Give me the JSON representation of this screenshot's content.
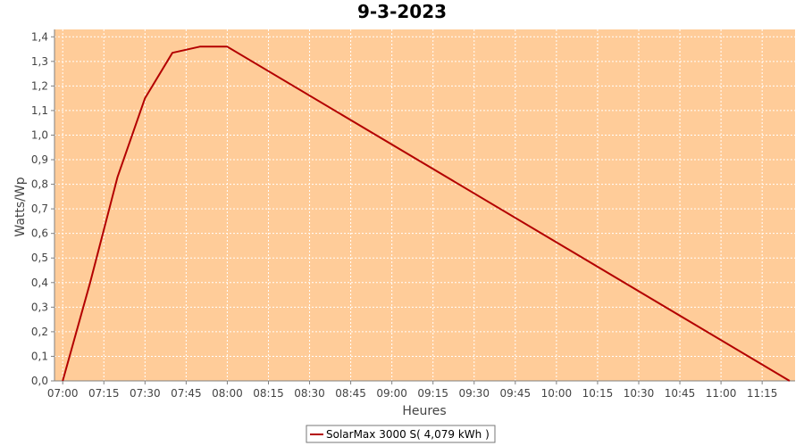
{
  "chart_data": {
    "type": "line",
    "title": "9-3-2023",
    "xlabel": "Heures",
    "ylabel": "Watts/Wp",
    "x_ticks": [
      "07:00",
      "07:15",
      "07:30",
      "07:45",
      "08:00",
      "08:15",
      "08:30",
      "08:45",
      "09:00",
      "09:15",
      "09:30",
      "09:45",
      "10:00",
      "10:15",
      "10:30",
      "10:45",
      "11:00",
      "11:15"
    ],
    "y_ticks": [
      "0,0",
      "0,1",
      "0,2",
      "0,3",
      "0,4",
      "0,5",
      "0,6",
      "0,7",
      "0,8",
      "0,9",
      "1,0",
      "1,1",
      "1,2",
      "1,3",
      "1,4"
    ],
    "xlim": [
      "06:57",
      "11:27"
    ],
    "ylim": [
      0,
      1.43
    ],
    "grid": true,
    "legend_position": "bottom-center",
    "series": [
      {
        "name": "SolarMax 3000 S( 4,079 kWh )",
        "color": "#b30000",
        "x": [
          "07:00",
          "07:10",
          "07:20",
          "07:30",
          "07:40",
          "07:50",
          "08:00",
          "11:25"
        ],
        "y": [
          0.0,
          0.4,
          0.83,
          1.15,
          1.335,
          1.36,
          1.36,
          0.0
        ]
      }
    ],
    "colors": {
      "plot_background": "#ffcc99",
      "gridline": "#ffffff",
      "axis": "#808080"
    }
  }
}
